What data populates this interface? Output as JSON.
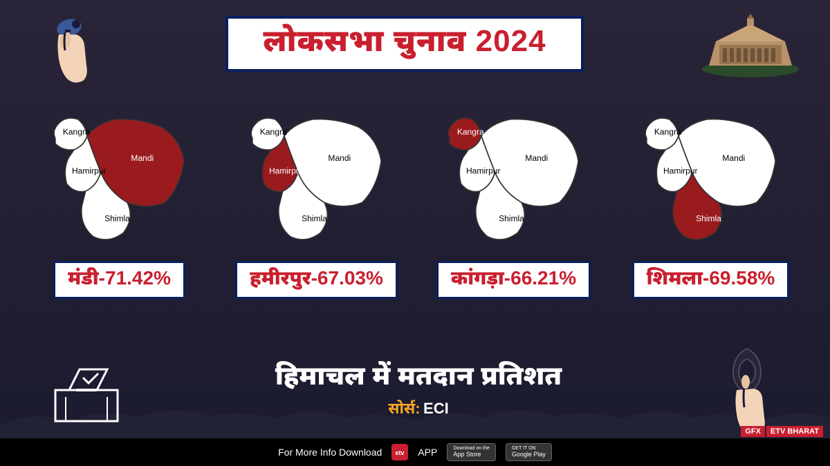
{
  "title": "लोकसभा चुनाव 2024",
  "subtitle": "हिमाचल में मतदान प्रतिशत",
  "source_label": "सोर्स:",
  "source_value": "ECI",
  "download_text": "For More Info Download",
  "app_text": "APP",
  "appstore_line1": "Download on the",
  "appstore_line2": "App Store",
  "playstore_line1": "GET IT ON",
  "playstore_line2": "Google Play",
  "gfx_label": "GFX",
  "brand_label": "ETV BHARAT",
  "colors": {
    "highlight": "#991b1e",
    "map_fill": "#ffffff",
    "map_stroke": "#333333",
    "accent": "#c91f2e",
    "border": "#0a1f5e"
  },
  "districts": [
    {
      "key": "kangra",
      "label": "Kangra"
    },
    {
      "key": "mandi",
      "label": "Mandi"
    },
    {
      "key": "hamirpur",
      "label": "Hamirpur"
    },
    {
      "key": "shimla",
      "label": "Shimla"
    }
  ],
  "maps": [
    {
      "highlight": "mandi",
      "caption": "मंडी-71.42%"
    },
    {
      "highlight": "hamirpur",
      "caption": "हमीरपुर-67.03%"
    },
    {
      "highlight": "kangra",
      "caption": "कांगड़ा-66.21%"
    },
    {
      "highlight": "shimla",
      "caption": "शिमला-69.58%"
    }
  ]
}
